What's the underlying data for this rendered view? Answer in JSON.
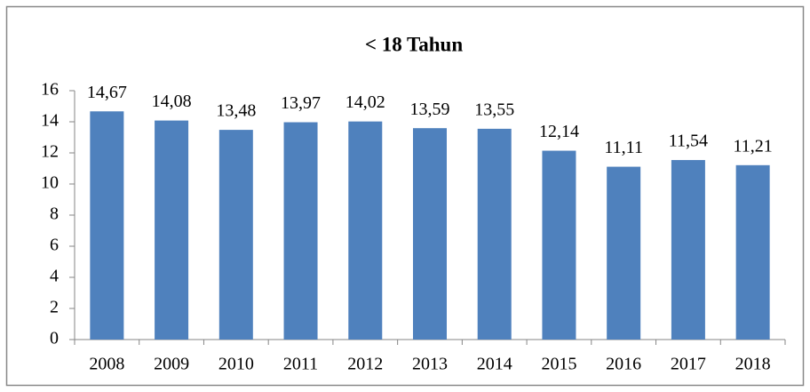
{
  "chart_data": {
    "type": "bar",
    "title": "< 18 Tahun",
    "categories": [
      "2008",
      "2009",
      "2010",
      "2011",
      "2012",
      "2013",
      "2014",
      "2015",
      "2016",
      "2017",
      "2018"
    ],
    "values": [
      14.67,
      14.08,
      13.48,
      13.97,
      14.02,
      13.59,
      13.55,
      12.14,
      11.11,
      11.54,
      11.21
    ],
    "value_labels": [
      "14,67",
      "14,08",
      "13,48",
      "13,97",
      "14,02",
      "13,59",
      "13,55",
      "12,14",
      "11,11",
      "11,54",
      "11,21"
    ],
    "color": "#4f81bd",
    "ylim": [
      0,
      16
    ],
    "yticks": [
      0,
      2,
      4,
      6,
      8,
      10,
      12,
      14,
      16
    ],
    "grid": false
  }
}
